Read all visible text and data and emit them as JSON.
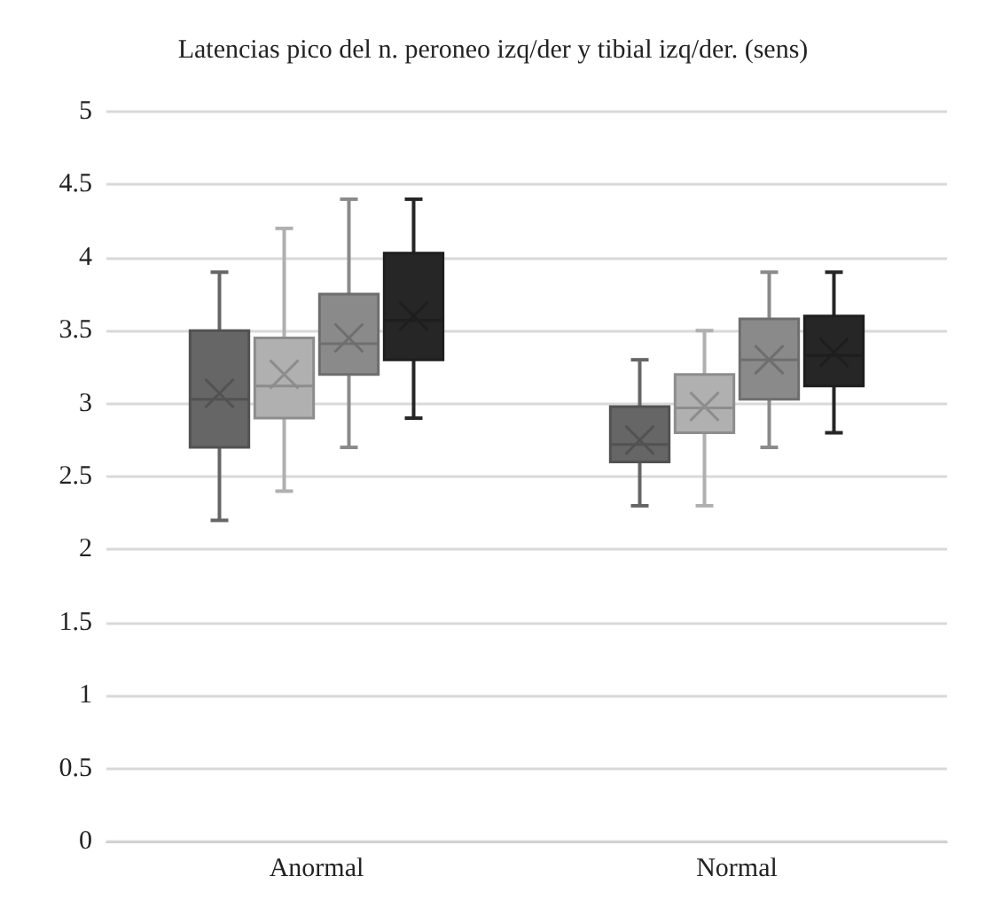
{
  "chart_data": {
    "type": "box",
    "title": "Latencias pico del n. peroneo izq/der y tibial izq/der. (sens)",
    "categories": [
      "Anormal",
      "Normal"
    ],
    "ylim": [
      0,
      5
    ],
    "yticks": [
      0,
      0.5,
      1,
      1.5,
      2,
      2.5,
      3,
      3.5,
      4,
      4.5,
      5
    ],
    "grid": "y",
    "series": [
      {
        "color": "#666666",
        "boxes": [
          {
            "low": 2.2,
            "q1": 2.7,
            "median": 3.03,
            "q3": 3.5,
            "high": 3.9,
            "mean": 3.07
          },
          {
            "low": 2.3,
            "q1": 2.6,
            "median": 2.72,
            "q3": 2.98,
            "high": 3.3,
            "mean": 2.75
          }
        ]
      },
      {
        "color": "#b0b0b0",
        "boxes": [
          {
            "low": 2.4,
            "q1": 2.9,
            "median": 3.12,
            "q3": 3.45,
            "high": 4.2,
            "mean": 3.2
          },
          {
            "low": 2.3,
            "q1": 2.8,
            "median": 2.97,
            "q3": 3.2,
            "high": 3.5,
            "mean": 2.98
          }
        ]
      },
      {
        "color": "#8a8a8a",
        "boxes": [
          {
            "low": 2.7,
            "q1": 3.2,
            "median": 3.41,
            "q3": 3.75,
            "high": 4.4,
            "mean": 3.45
          },
          {
            "low": 2.7,
            "q1": 3.03,
            "median": 3.3,
            "q3": 3.58,
            "high": 3.9,
            "mean": 3.3
          }
        ]
      },
      {
        "color": "#262626",
        "boxes": [
          {
            "low": 2.9,
            "q1": 3.3,
            "median": 3.57,
            "q3": 4.03,
            "high": 4.4,
            "mean": 3.6
          },
          {
            "low": 2.8,
            "q1": 3.12,
            "median": 3.33,
            "q3": 3.6,
            "high": 3.9,
            "mean": 3.35
          }
        ]
      }
    ]
  }
}
